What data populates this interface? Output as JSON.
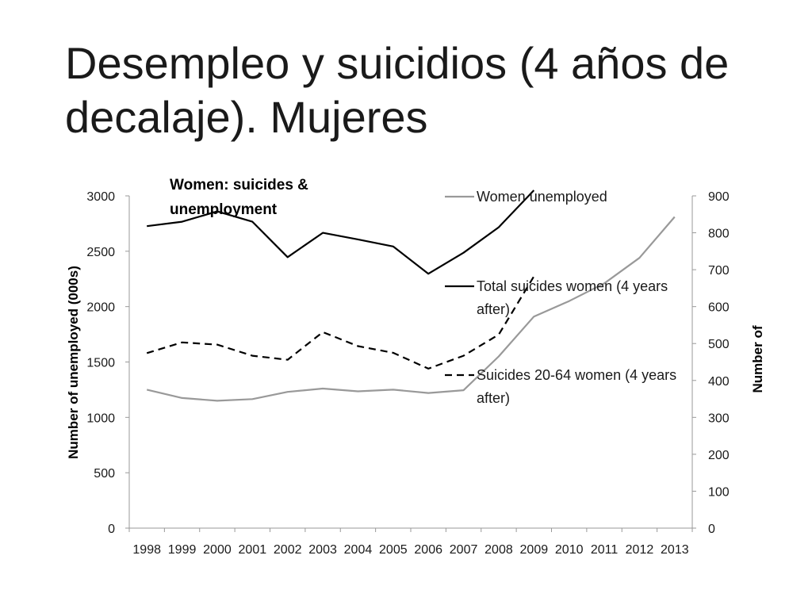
{
  "slide": {
    "title": "Desempleo y suicidios (4 años de decalaje). Mujeres"
  },
  "chart_data": {
    "type": "line",
    "title_lines": [
      "Women: suicides &",
      "unemployment"
    ],
    "ylabel": "Number of unemployed (000s)",
    "y2label": "Number of",
    "ylim": [
      0,
      3000
    ],
    "y2lim": [
      0,
      900
    ],
    "yticks": [
      0,
      500,
      1000,
      1500,
      2000,
      2500,
      3000
    ],
    "y2ticks": [
      0,
      100,
      200,
      300,
      400,
      500,
      600,
      700,
      800,
      900
    ],
    "categories": [
      "1998",
      "1999",
      "2000",
      "2001",
      "2002",
      "2003",
      "2004",
      "2005",
      "2006",
      "2007",
      "2008",
      "2009",
      "2010",
      "2011",
      "2012",
      "2013"
    ],
    "legend_position": "right",
    "grid": false,
    "series": [
      {
        "name": "Women unemployed",
        "axis": "left",
        "color": "#999999",
        "dash": "solid",
        "legend_lines": [
          "Women unemployed"
        ],
        "values": [
          1250,
          1175,
          1150,
          1165,
          1230,
          1260,
          1235,
          1250,
          1220,
          1245,
          1550,
          1910,
          2050,
          2210,
          2440,
          2810
        ]
      },
      {
        "name": "Total suicides women (4 years after)",
        "axis": "right",
        "color": "#000000",
        "dash": "solid",
        "legend_lines": [
          "Total suicides women (4 years",
          "after)"
        ],
        "values": [
          818,
          830,
          858,
          830,
          734,
          800,
          782,
          763,
          689,
          746,
          815,
          915,
          null,
          null,
          null,
          null
        ]
      },
      {
        "name": "Suicides 20-64 women (4 years after)",
        "axis": "right",
        "color": "#000000",
        "dash": "dashed",
        "legend_lines": [
          "Suicides 20-64 women (4 years",
          "after)"
        ],
        "values": [
          474,
          503,
          497,
          467,
          456,
          531,
          493,
          475,
          432,
          467,
          524,
          682,
          null,
          null,
          null,
          null
        ]
      }
    ]
  }
}
